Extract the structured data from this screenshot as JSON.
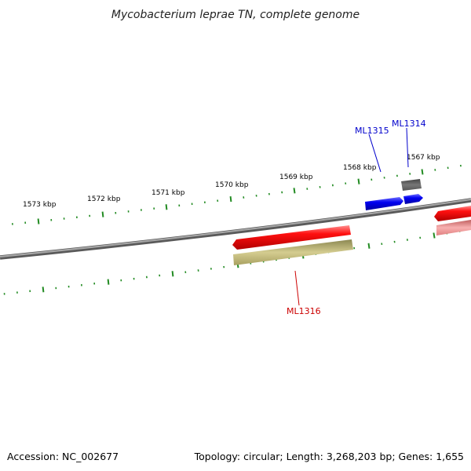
{
  "title": "Mycobacterium leprae TN, complete genome",
  "footer": {
    "accession": "Accession: NC_002677",
    "summary": "Topology: circular; Length: 3,268,203 bp; Genes: 1,655"
  },
  "ticks": {
    "labels": [
      "1573 kbp",
      "1572 kbp",
      "1571 kbp",
      "1570 kbp",
      "1569 kbp",
      "1568 kbp",
      "1567 kbp"
    ]
  },
  "genes": [
    {
      "name": "ML1315",
      "color": "#0000cc",
      "strand": "forward",
      "feature_color": "#0000ee"
    },
    {
      "name": "ML1314",
      "color": "#0000cc",
      "strand": "forward",
      "feature_color": "#0000ee"
    },
    {
      "name": "ML1316",
      "color": "#cc0000",
      "strand": "reverse",
      "feature_color": "#ee0000"
    }
  ],
  "colors": {
    "backbone": "#808080",
    "tick": "#228b22",
    "forward_cds": "#0000ee",
    "reverse_cds": "#ee0000",
    "gene_reverse": "#b8b070",
    "gene_forward": "#555555",
    "reverse_cds_light": "#f08080"
  }
}
